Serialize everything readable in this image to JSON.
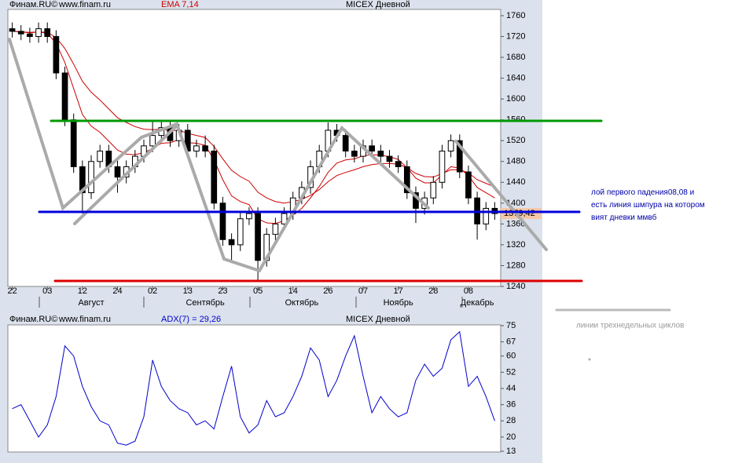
{
  "chart_data": [
    {
      "type": "candlestick",
      "source": "Финам.RU©",
      "site": "www.finam.ru",
      "indicator": "EMA 7,14",
      "title": "MICEX Дневной",
      "categories": [
        "22",
        null,
        null,
        null,
        "03",
        null,
        null,
        null,
        "12",
        null,
        null,
        null,
        "24",
        null,
        null,
        null,
        "02",
        null,
        null,
        null,
        "13",
        null,
        null,
        null,
        "23",
        null,
        null,
        null,
        "05",
        null,
        null,
        null,
        "14",
        null,
        null,
        null,
        "26",
        null,
        null,
        null,
        "07",
        null,
        null,
        null,
        "17",
        null,
        null,
        null,
        "28",
        null,
        null,
        null,
        "08",
        null,
        null,
        null
      ],
      "months": [
        null,
        null,
        null,
        null,
        null,
        null,
        null,
        null,
        null,
        "Август",
        null,
        null,
        null,
        null,
        null,
        null,
        null,
        null,
        null,
        null,
        null,
        null,
        "Сентябрь",
        null,
        null,
        null,
        null,
        null,
        null,
        null,
        null,
        null,
        null,
        "Октябрь",
        null,
        null,
        null,
        null,
        null,
        null,
        null,
        null,
        null,
        null,
        "Ноябрь",
        null,
        null,
        null,
        null,
        null,
        null,
        null,
        null,
        "Декабрь",
        null,
        null
      ],
      "open": [
        1735,
        1730,
        1725,
        1720,
        1735,
        1720,
        1650,
        1560,
        1470,
        1420,
        1480,
        1500,
        1470,
        1450,
        1470,
        1490,
        1510,
        1530,
        1545,
        1520,
        1540,
        1500,
        1510,
        1500,
        1400,
        1330,
        1320,
        1370,
        1380,
        1290,
        1340,
        1360,
        1380,
        1410,
        1430,
        1470,
        1500,
        1540,
        1530,
        1500,
        1490,
        1510,
        1500,
        1490,
        1480,
        1470,
        1420,
        1390,
        1410,
        1440,
        1500,
        1520,
        1460,
        1410,
        1360,
        1390
      ],
      "high": [
        1747,
        1742,
        1737,
        1747,
        1747,
        1732,
        1662,
        1572,
        1482,
        1492,
        1512,
        1512,
        1482,
        1482,
        1502,
        1522,
        1560,
        1560,
        1557,
        1552,
        1552,
        1522,
        1530,
        1512,
        1412,
        1342,
        1382,
        1392,
        1392,
        1352,
        1372,
        1392,
        1422,
        1442,
        1482,
        1512,
        1555,
        1552,
        1542,
        1512,
        1522,
        1522,
        1512,
        1502,
        1492,
        1482,
        1432,
        1422,
        1452,
        1512,
        1532,
        1532,
        1472,
        1422,
        1402,
        1402
      ],
      "low": [
        1718,
        1713,
        1708,
        1708,
        1708,
        1638,
        1548,
        1458,
        1380,
        1408,
        1468,
        1458,
        1420,
        1438,
        1458,
        1478,
        1498,
        1518,
        1508,
        1508,
        1488,
        1488,
        1488,
        1388,
        1318,
        1285,
        1308,
        1358,
        1252,
        1278,
        1328,
        1348,
        1368,
        1398,
        1418,
        1458,
        1488,
        1518,
        1488,
        1478,
        1478,
        1488,
        1478,
        1468,
        1458,
        1408,
        1362,
        1378,
        1398,
        1428,
        1488,
        1448,
        1398,
        1330,
        1348,
        1368
      ],
      "close": [
        1730,
        1725,
        1720,
        1735,
        1720,
        1650,
        1560,
        1470,
        1420,
        1480,
        1500,
        1470,
        1450,
        1470,
        1490,
        1510,
        1530,
        1545,
        1520,
        1540,
        1500,
        1510,
        1500,
        1400,
        1330,
        1320,
        1370,
        1380,
        1290,
        1340,
        1360,
        1380,
        1410,
        1430,
        1470,
        1500,
        1540,
        1530,
        1500,
        1490,
        1510,
        1500,
        1490,
        1480,
        1470,
        1420,
        1390,
        1410,
        1440,
        1500,
        1520,
        1460,
        1410,
        1360,
        1390,
        1380
      ],
      "series": [
        {
          "color": "#cc0000",
          "values": [
            1730,
            1729,
            1727,
            1729,
            1726,
            1707,
            1670,
            1620,
            1570,
            1548,
            1536,
            1519,
            1502,
            1494,
            1493,
            1497,
            1505,
            1515,
            1516,
            1522,
            1516,
            1515,
            1511,
            1483,
            1445,
            1414,
            1403,
            1397,
            1370,
            1362,
            1361,
            1366,
            1377,
            1390,
            1410,
            1432,
            1459,
            1477,
            1483,
            1485,
            1491,
            1493,
            1492,
            1489,
            1484,
            1468,
            1448,
            1439,
            1439,
            1454,
            1470,
            1467,
            1453,
            1430,
            1420,
            1410
          ]
        },
        {
          "color": "#cc0000",
          "values": [
            1730,
            1729,
            1728,
            1729,
            1728,
            1718,
            1697,
            1667,
            1634,
            1613,
            1598,
            1581,
            1564,
            1555,
            1547,
            1542,
            1541,
            1542,
            1539,
            1540,
            1534,
            1530,
            1526,
            1509,
            1485,
            1463,
            1451,
            1442,
            1421,
            1410,
            1403,
            1400,
            1403,
            1407,
            1415,
            1426,
            1441,
            1453,
            1459,
            1464,
            1470,
            1474,
            1476,
            1476,
            1475,
            1468,
            1457,
            1451,
            1450,
            1457,
            1464,
            1464,
            1458,
            1445,
            1438,
            1431
          ]
        }
      ],
      "last_label": "1379,42",
      "ylim": [
        1240,
        1760
      ],
      "yticks": [
        1240,
        1280,
        1320,
        1360,
        1400,
        1440,
        1480,
        1520,
        1560,
        1600,
        1640,
        1680,
        1720,
        1760
      ]
    },
    {
      "type": "line",
      "source": "Финам.RU©",
      "site": "www.finam.ru",
      "indicator": "ADX(7) = 29,26",
      "title": "MICEX Дневной",
      "series": [
        {
          "color": "#0000cc",
          "values": [
            34,
            36,
            28,
            20,
            26,
            40,
            65,
            60,
            45,
            35,
            28,
            26,
            17,
            16,
            18,
            30,
            58,
            45,
            38,
            34,
            32,
            26,
            28,
            24,
            40,
            55,
            30,
            22,
            26,
            38,
            30,
            32,
            40,
            50,
            64,
            58,
            40,
            48,
            60,
            70,
            50,
            32,
            40,
            34,
            30,
            32,
            48,
            56,
            50,
            54,
            68,
            72,
            45,
            50,
            40,
            28
          ]
        }
      ],
      "ylim": [
        13,
        75
      ],
      "yticks": [
        13,
        20,
        28,
        36,
        44,
        52,
        60,
        67,
        75
      ]
    }
  ],
  "annotations": {
    "note": "лой первого падения08,08 и есть линия шмпура на котором вият дневки ммвб",
    "legend": "линии трехнедельных циклов"
  }
}
